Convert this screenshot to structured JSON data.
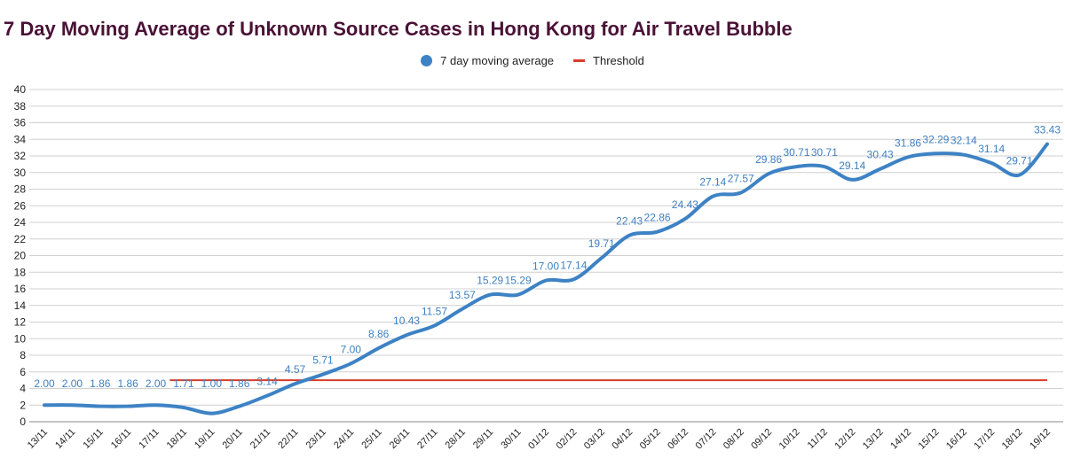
{
  "title": "7 Day Moving Average of Unknown Source Cases in Hong Kong for Air Travel Bubble",
  "legend": {
    "series1": "7 day moving average",
    "series2": "Threshold"
  },
  "colors": {
    "series_line": "#3d82c4",
    "threshold_line": "#d63e2a",
    "title": "#4a1236",
    "grid": "#d0d0d0",
    "label": "#3f7fbf"
  },
  "chart_data": {
    "type": "line",
    "title": "7 Day Moving Average of Unknown Source Cases in Hong Kong for Air Travel Bubble",
    "xlabel": "",
    "ylabel": "",
    "ylim": [
      0,
      40
    ],
    "ytick_step": 2,
    "yticks": [
      "0",
      "2",
      "4",
      "6",
      "8",
      "10",
      "12",
      "14",
      "16",
      "18",
      "20",
      "22",
      "24",
      "26",
      "28",
      "30",
      "32",
      "34",
      "36",
      "38",
      "40"
    ],
    "grid": true,
    "legend_position": "top-center",
    "categories": [
      "13/11",
      "14/11",
      "15/11",
      "16/11",
      "17/11",
      "18/11",
      "19/11",
      "20/11",
      "21/11",
      "22/11",
      "23/11",
      "24/11",
      "25/11",
      "26/11",
      "27/11",
      "28/11",
      "29/11",
      "30/11",
      "01/12",
      "02/12",
      "03/12",
      "04/12",
      "05/12",
      "06/12",
      "07/12",
      "08/12",
      "09/12",
      "10/12",
      "11/12",
      "12/12",
      "13/12",
      "14/12",
      "15/12",
      "16/12",
      "17/12",
      "18/12",
      "19/12"
    ],
    "series": [
      {
        "name": "7 day moving average",
        "values": [
          2.0,
          2.0,
          1.86,
          1.86,
          2.0,
          1.71,
          1.0,
          1.86,
          3.14,
          4.57,
          5.71,
          7.0,
          8.86,
          10.43,
          11.57,
          13.57,
          15.29,
          15.29,
          17.0,
          17.14,
          19.71,
          22.43,
          22.86,
          24.43,
          27.14,
          27.57,
          29.86,
          30.71,
          30.71,
          29.14,
          30.43,
          31.86,
          32.29,
          32.14,
          31.14,
          29.71,
          33.43
        ],
        "labels": [
          "2.00",
          "2.00",
          "1.86",
          "1.86",
          "2.00",
          "1.71",
          "1.00",
          "1.86",
          "3.14",
          "4.57",
          "5.71",
          "7.00",
          "8.86",
          "10.43",
          "11.57",
          "13.57",
          "15.29",
          "15.29",
          "17.00",
          "17.14",
          "19.71",
          "22.43",
          "22.86",
          "24.43",
          "27.14",
          "27.57",
          "29.86",
          "30.71",
          "30.71",
          "29.14",
          "30.43",
          "31.86",
          "32.29",
          "32.14",
          "31.14",
          "29.71",
          "33.43"
        ]
      },
      {
        "name": "Threshold",
        "values": [
          null,
          null,
          null,
          null,
          null,
          5,
          5,
          5,
          5,
          5,
          5,
          5,
          5,
          5,
          5,
          5,
          5,
          5,
          5,
          5,
          5,
          5,
          5,
          5,
          5,
          5,
          5,
          5,
          5,
          5,
          5,
          5,
          5,
          5,
          5,
          5,
          5
        ]
      }
    ]
  }
}
